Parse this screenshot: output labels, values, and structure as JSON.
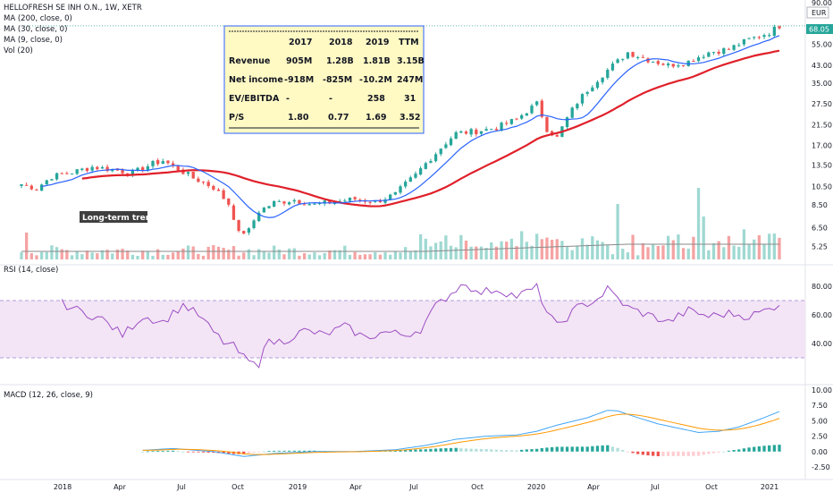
{
  "header": {
    "symbol_line": "HELLOFRESH SE INH O.N., 1W, XETR",
    "indicators": [
      "MA (200, close, 0)",
      "MA (30, close, 0)",
      "MA (9, close, 0)",
      "Vol (20)"
    ],
    "currency": "EUR",
    "last_price": "68.05",
    "top_tick": "90.00"
  },
  "colors": {
    "up": "#26a69a",
    "down": "#ef5350",
    "ma30": "#e0202a",
    "ma9": "#2962ff",
    "rsi_line": "#9c4dc4",
    "rsi_band": "#f3e5f5",
    "macd_line": "#42a5f5",
    "signal_line": "#ff9800",
    "table_bg": "#fff9c4",
    "table_border": "#2962ff",
    "annotation_bg": "#3f3f3f"
  },
  "annotation": "Long-term trend",
  "fundamentals_table": {
    "columns": [
      "2017",
      "2018",
      "2019",
      "TTM"
    ],
    "rows": [
      {
        "label": "Revenue",
        "values": [
          "905M",
          "1.28B",
          "1.81B",
          "3.15B"
        ]
      },
      {
        "label": "Net income",
        "values": [
          "-918M",
          "-825M",
          "-10.2M",
          "247M"
        ]
      },
      {
        "label": "EV/EBITDA",
        "values": [
          "-",
          "-",
          "258",
          "31"
        ]
      },
      {
        "label": "P/S",
        "values": [
          "1.80",
          "0.77",
          "1.69",
          "3.52"
        ]
      }
    ]
  },
  "chart_data": [
    {
      "type": "candlestick",
      "title": "HELLOFRESH SE INH O.N., 1W, XETR",
      "x_axis_labels": [
        "2018",
        "Apr",
        "Jul",
        "Oct",
        "2019",
        "Apr",
        "Jul",
        "Oct",
        "2020",
        "Apr",
        "Jul",
        "Oct",
        "2021"
      ],
      "y_scale": "log",
      "y_ticks": [
        5.25,
        6.5,
        8.5,
        10.5,
        13.5,
        17.0,
        21.5,
        27.5,
        35.0,
        43.0,
        55.0,
        68.05
      ],
      "price_anchors_week_close": [
        [
          0,
          10.8
        ],
        [
          3,
          10.3
        ],
        [
          6,
          11.8
        ],
        [
          10,
          12.4
        ],
        [
          14,
          13.2
        ],
        [
          18,
          12.8
        ],
        [
          22,
          12.3
        ],
        [
          26,
          13.7
        ],
        [
          28,
          14.2
        ],
        [
          30,
          13.3
        ],
        [
          34,
          11.6
        ],
        [
          38,
          10.4
        ],
        [
          41,
          8.6
        ],
        [
          43,
          6.1
        ],
        [
          45,
          6.3
        ],
        [
          47,
          7.9
        ],
        [
          50,
          8.7
        ],
        [
          54,
          9.0
        ],
        [
          58,
          8.5
        ],
        [
          62,
          8.8
        ],
        [
          66,
          9.1
        ],
        [
          70,
          8.8
        ],
        [
          74,
          9.6
        ],
        [
          78,
          12.0
        ],
        [
          82,
          15.5
        ],
        [
          86,
          19.5
        ],
        [
          90,
          20.0
        ],
        [
          94,
          20.8
        ],
        [
          98,
          23.0
        ],
        [
          102,
          27.5
        ],
        [
          104,
          20.5
        ],
        [
          106,
          18.5
        ],
        [
          110,
          28.0
        ],
        [
          114,
          36.5
        ],
        [
          118,
          45.0
        ],
        [
          120,
          50.0
        ],
        [
          124,
          46.0
        ],
        [
          128,
          43.0
        ],
        [
          132,
          45.0
        ],
        [
          136,
          50.0
        ],
        [
          140,
          52.0
        ],
        [
          144,
          58.0
        ],
        [
          148,
          63.0
        ],
        [
          150,
          68.05
        ]
      ],
      "series": [
        {
          "name": "MA (30, close, 0)"
        },
        {
          "name": "MA (9, close, 0)"
        },
        {
          "name": "Vol (20)"
        }
      ]
    },
    {
      "type": "line",
      "title": "RSI (14, close)",
      "y_ticks": [
        40.0,
        60.0,
        80.0
      ],
      "band": [
        30,
        70
      ],
      "values_anchors": [
        [
          8,
          68
        ],
        [
          12,
          62
        ],
        [
          16,
          57
        ],
        [
          20,
          46
        ],
        [
          24,
          59
        ],
        [
          28,
          55
        ],
        [
          32,
          67
        ],
        [
          35,
          60
        ],
        [
          38,
          48
        ],
        [
          40,
          41
        ],
        [
          42,
          38
        ],
        [
          44,
          30
        ],
        [
          46,
          25
        ],
        [
          47,
          26
        ],
        [
          48,
          40
        ],
        [
          52,
          42
        ],
        [
          56,
          49
        ],
        [
          60,
          46
        ],
        [
          64,
          52
        ],
        [
          68,
          44
        ],
        [
          72,
          48
        ],
        [
          76,
          46
        ],
        [
          79,
          50
        ],
        [
          82,
          66
        ],
        [
          86,
          78
        ],
        [
          88,
          83
        ],
        [
          90,
          75
        ],
        [
          94,
          78
        ],
        [
          98,
          73
        ],
        [
          102,
          79
        ],
        [
          104,
          62
        ],
        [
          106,
          52
        ],
        [
          110,
          65
        ],
        [
          114,
          71
        ],
        [
          116,
          78
        ],
        [
          120,
          65
        ],
        [
          124,
          60
        ],
        [
          128,
          55
        ],
        [
          132,
          63
        ],
        [
          136,
          59
        ],
        [
          140,
          61
        ],
        [
          144,
          59
        ],
        [
          148,
          64
        ],
        [
          150,
          68
        ]
      ]
    },
    {
      "type": "bar",
      "title": "MACD (12, 26, close, 9)",
      "y_ticks": [
        -2.5,
        0.0,
        2.5,
        5.0,
        7.5,
        10.0
      ],
      "series": [
        {
          "name": "MACD"
        },
        {
          "name": "Signal"
        },
        {
          "name": "Histogram"
        }
      ],
      "macd_anchors": [
        [
          24,
          0.2
        ],
        [
          30,
          0.5
        ],
        [
          38,
          0.0
        ],
        [
          44,
          -0.8
        ],
        [
          50,
          -0.3
        ],
        [
          58,
          0.0
        ],
        [
          66,
          0.0
        ],
        [
          74,
          0.3
        ],
        [
          80,
          1.0
        ],
        [
          86,
          2.0
        ],
        [
          92,
          2.5
        ],
        [
          98,
          2.7
        ],
        [
          102,
          3.3
        ],
        [
          106,
          4.3
        ],
        [
          112,
          5.5
        ],
        [
          116,
          6.7
        ],
        [
          118,
          6.6
        ],
        [
          122,
          5.5
        ],
        [
          126,
          4.5
        ],
        [
          130,
          3.8
        ],
        [
          134,
          3.1
        ],
        [
          138,
          3.3
        ],
        [
          142,
          4.0
        ],
        [
          146,
          5.2
        ],
        [
          150,
          6.5
        ]
      ]
    }
  ]
}
